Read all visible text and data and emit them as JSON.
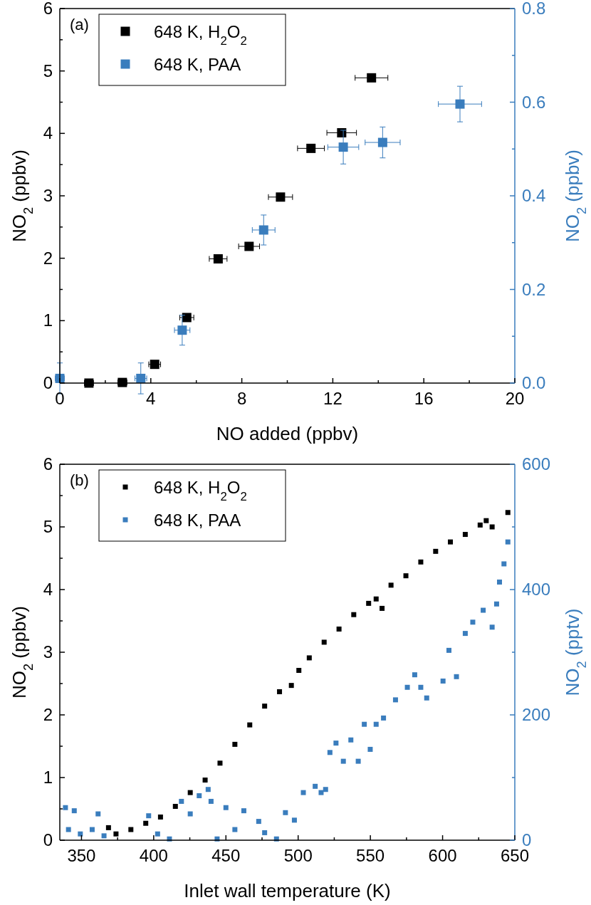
{
  "chart_data": [
    {
      "type": "scatter",
      "xlabel": "NO added (ppbv)",
      "ylabel": "NO$_{2}$ (ppbv)",
      "y2label": "NO$_{2}$ (ppbv)",
      "annotations": [
        "(a)"
      ],
      "marker": "square",
      "legend": "top left",
      "grid": false,
      "xlim": [
        0,
        20
      ],
      "xticks": [
        0,
        {
          "value": 2,
          "label": null
        },
        4,
        {
          "value": 6,
          "label": null
        },
        8,
        {
          "value": 10,
          "label": null
        },
        12,
        {
          "value": 14,
          "label": null
        },
        16,
        {
          "value": 18,
          "label": null
        },
        20
      ],
      "ylim": [
        0,
        6
      ],
      "yticks": [
        0,
        {
          "value": 0.5,
          "label": null
        },
        1,
        {
          "value": 1.5,
          "label": null
        },
        2,
        {
          "value": 2.5,
          "label": null
        },
        3,
        {
          "value": 3.5,
          "label": null
        },
        4,
        {
          "value": 4.5,
          "label": null
        },
        5,
        {
          "value": 5.5,
          "label": null
        },
        6
      ],
      "y2lim": [
        0,
        0.8
      ],
      "y2ticks": [
        {
          "value": 0,
          "label": "0.0"
        },
        {
          "value": 0.1,
          "label": null
        },
        {
          "value": 0.2,
          "label": "0.2"
        },
        {
          "value": 0.3,
          "label": null
        },
        {
          "value": 0.4,
          "label": "0.4"
        },
        {
          "value": 0.5,
          "label": null
        },
        {
          "value": 0.6,
          "label": "0.6"
        },
        {
          "value": 0.7,
          "label": null
        },
        {
          "value": 0.8,
          "label": "0.8"
        }
      ],
      "series": [
        {
          "name": "648 K, H$_{2}$O$_{2}$",
          "color": "#000000",
          "x": [
            1.28,
            2.75,
            4.17,
            5.58,
            6.96,
            8.32,
            9.7,
            11.04,
            12.39,
            13.7
          ],
          "values": [
            0,
            0.01,
            0.3,
            1.05,
            1.99,
            2.19,
            2.98,
            3.76,
            4.01,
            4.89
          ],
          "xerrors": [
            0.2,
            0.2,
            0.26,
            0.31,
            0.39,
            0.46,
            0.53,
            0.59,
            0.65,
            0.72
          ]
        },
        {
          "name": "648 K, PAA",
          "color": "#3a7dbd",
          "axis": "y2",
          "x": [
            0,
            3.56,
            5.38,
            8.96,
            12.46,
            14.19,
            17.59
          ],
          "values": [
            0.01,
            0.01,
            0.113,
            0.327,
            0.504,
            0.514,
            0.596
          ],
          "errors": [
            0.033,
            0.033,
            0.032,
            0.032,
            0.036,
            0.033,
            0.038
          ],
          "xerrors": [
            0.2,
            0.26,
            0.34,
            0.5,
            0.68,
            0.77,
            0.95
          ]
        }
      ]
    },
    {
      "type": "scatter",
      "xlabel": "Inlet wall temperature (K)",
      "ylabel": "NO$_{2}$ (ppbv)",
      "y2label": "NO$_{2}$ (pptv)",
      "annotations": [
        "(b)"
      ],
      "marker": "square",
      "legend": "top left",
      "grid": false,
      "xlim": [
        335,
        650
      ],
      "xticks": [
        350,
        {
          "value": 375,
          "label": null
        },
        400,
        {
          "value": 425,
          "label": null
        },
        450,
        {
          "value": 475,
          "label": null
        },
        500,
        {
          "value": 525,
          "label": null
        },
        550,
        {
          "value": 575,
          "label": null
        },
        600,
        {
          "value": 625,
          "label": null
        },
        650
      ],
      "ylim": [
        0,
        6
      ],
      "yticks": [
        0,
        {
          "value": 0.5,
          "label": null
        },
        1,
        {
          "value": 1.5,
          "label": null
        },
        2,
        {
          "value": 2.5,
          "label": null
        },
        3,
        {
          "value": 3.5,
          "label": null
        },
        4,
        {
          "value": 4.5,
          "label": null
        },
        5,
        {
          "value": 5.5,
          "label": null
        },
        6
      ],
      "y2lim": [
        0,
        600
      ],
      "y2ticks": [
        0,
        {
          "value": 100,
          "label": null
        },
        200,
        {
          "value": 300,
          "label": null
        },
        400,
        {
          "value": 500,
          "label": null
        },
        600
      ],
      "series": [
        {
          "name": "648 K, H$_{2}$O$_{2}$",
          "color": "#000000",
          "x": [
            368.7,
            373.9,
            384.2,
            394.5,
            404.7,
            415,
            425.3,
            435.6,
            445.9,
            456.2,
            466.5,
            476.8,
            487.1,
            495.3,
            500.5,
            507.7,
            518,
            528.3,
            538.5,
            548.8,
            554,
            558.1,
            564.3,
            574.6,
            584.9,
            595.2,
            605.4,
            615.7,
            626,
            630.2,
            634.3,
            645.2
          ],
          "values": [
            0.2,
            0.1,
            0.17,
            0.27,
            0.37,
            0.54,
            0.76,
            0.96,
            1.23,
            1.53,
            1.84,
            2.14,
            2.37,
            2.47,
            2.71,
            2.91,
            3.16,
            3.37,
            3.6,
            3.78,
            3.85,
            3.7,
            4.07,
            4.22,
            4.44,
            4.61,
            4.76,
            4.88,
            5.03,
            5.1,
            5.0,
            5.23
          ]
        },
        {
          "name": "648 K, PAA",
          "color": "#3a7dbd",
          "axis": "y2",
          "x": [
            338.9,
            341,
            345,
            349.2,
            357.4,
            361.5,
            365.6,
            396.5,
            402.7,
            410.9,
            419.2,
            425.3,
            431.5,
            437.7,
            439.7,
            443.9,
            450,
            456.2,
            462.4,
            472.7,
            476.8,
            485,
            491.2,
            497.4,
            503.6,
            511.8,
            515.9,
            519,
            522,
            526.2,
            531.3,
            536.5,
            541.6,
            545.8,
            549.9,
            554,
            559.1,
            567.4,
            575.6,
            580.7,
            584.9,
            589,
            600.3,
            604.4,
            609.6,
            615.7,
            620.9,
            628.1,
            634.3,
            637.4,
            639.4,
            642.5,
            645.2
          ],
          "values": [
            52,
            17,
            47,
            10,
            17,
            42,
            7,
            39,
            10,
            2,
            62,
            42,
            71,
            81,
            62,
            2,
            52,
            17,
            47,
            30,
            12,
            2,
            44,
            32,
            76,
            86,
            76,
            81,
            140,
            155,
            126,
            160,
            126,
            185,
            145,
            185,
            195,
            224,
            244,
            264,
            244,
            227,
            254,
            303,
            261,
            330,
            348,
            367,
            340,
            377,
            412,
            441,
            476
          ]
        }
      ]
    }
  ]
}
